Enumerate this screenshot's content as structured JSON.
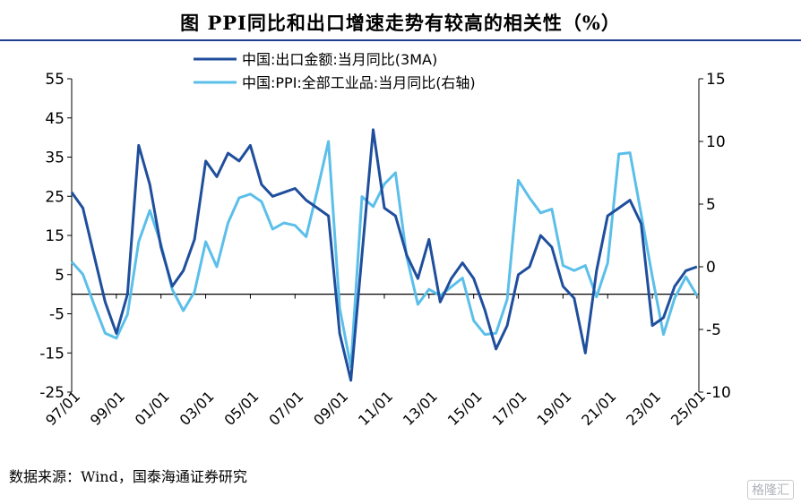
{
  "title": "图  PPI同比和出口增速走势有较高的相关性（%）",
  "source": "数据来源：Wind，国泰海通证券研究",
  "watermark": "格隆汇",
  "colors": {
    "export": "#1f4e9c",
    "ppi": "#5bbfea",
    "zero_line": "#000000",
    "title_rule": "#1f3f8f"
  },
  "chart_data": {
    "type": "line",
    "legend_position": "top-center",
    "grid": false,
    "series": [
      {
        "name": "中国:出口金额:当月同比(3MA)",
        "axis": "left",
        "x": [
          "1997-01",
          "1997-07",
          "1998-01",
          "1998-07",
          "1999-01",
          "1999-07",
          "2000-01",
          "2000-07",
          "2001-01",
          "2001-07",
          "2002-01",
          "2002-07",
          "2003-01",
          "2003-07",
          "2004-01",
          "2004-07",
          "2005-01",
          "2005-07",
          "2006-01",
          "2006-07",
          "2007-01",
          "2007-07",
          "2008-01",
          "2008-07",
          "2009-01",
          "2009-07",
          "2010-01",
          "2010-07",
          "2011-01",
          "2011-07",
          "2012-01",
          "2012-07",
          "2013-01",
          "2013-07",
          "2014-01",
          "2014-07",
          "2015-01",
          "2015-07",
          "2016-01",
          "2016-07",
          "2017-01",
          "2017-07",
          "2018-01",
          "2018-07",
          "2019-01",
          "2019-07",
          "2020-01",
          "2020-07",
          "2021-01",
          "2021-07",
          "2022-01",
          "2022-07",
          "2023-01",
          "2023-07",
          "2024-01",
          "2024-07",
          "2025-01"
        ],
        "values": [
          26,
          22,
          10,
          -2,
          -10,
          0,
          38,
          28,
          12,
          2,
          6,
          14,
          34,
          30,
          36,
          34,
          38,
          28,
          25,
          26,
          27,
          24,
          22,
          20,
          -10,
          -22,
          10,
          42,
          22,
          20,
          10,
          4,
          14,
          -2,
          4,
          8,
          4,
          -4,
          -14,
          -8,
          5,
          7,
          15,
          12,
          2,
          -1,
          -15,
          6,
          20,
          22,
          24,
          18,
          -8,
          -6,
          2,
          6,
          7
        ]
      },
      {
        "name": "中国:PPI:全部工业品:当月同比(右轴)",
        "axis": "right",
        "x": [
          "1997-01",
          "1997-07",
          "1998-01",
          "1998-07",
          "1999-01",
          "1999-07",
          "2000-01",
          "2000-07",
          "2001-01",
          "2001-07",
          "2002-01",
          "2002-07",
          "2003-01",
          "2003-07",
          "2004-01",
          "2004-07",
          "2005-01",
          "2005-07",
          "2006-01",
          "2006-07",
          "2007-01",
          "2007-07",
          "2008-01",
          "2008-07",
          "2009-01",
          "2009-07",
          "2010-01",
          "2010-07",
          "2011-01",
          "2011-07",
          "2012-01",
          "2012-07",
          "2013-01",
          "2013-07",
          "2014-01",
          "2014-07",
          "2015-01",
          "2015-07",
          "2016-01",
          "2016-07",
          "2017-01",
          "2017-07",
          "2018-01",
          "2018-07",
          "2019-01",
          "2019-07",
          "2020-01",
          "2020-07",
          "2021-01",
          "2021-07",
          "2022-01",
          "2022-07",
          "2023-01",
          "2023-07",
          "2024-01",
          "2024-07",
          "2025-01"
        ],
        "values": [
          0.4,
          -0.6,
          -3,
          -5.3,
          -5.7,
          -3.8,
          2,
          4.5,
          1.8,
          -1.8,
          -3.5,
          -2,
          2,
          0,
          3.5,
          5.5,
          5.8,
          5.2,
          3,
          3.5,
          3.3,
          2.4,
          6.1,
          10,
          -3.3,
          -8,
          5.6,
          4.8,
          6.6,
          7.5,
          0.8,
          -3,
          -1.8,
          -2.3,
          -1.6,
          -0.9,
          -4.3,
          -5.4,
          -5.3,
          -2.6,
          6.9,
          5.5,
          4.3,
          4.6,
          0.1,
          -0.3,
          0.1,
          -2.4,
          0.3,
          9,
          9.1,
          4.2,
          -0.8,
          -5.4,
          -2.5,
          -0.8,
          -2.3
        ]
      }
    ],
    "y_left": {
      "min": -25,
      "max": 55,
      "ticks": [
        55,
        45,
        35,
        25,
        15,
        5,
        -5,
        -15,
        -25
      ]
    },
    "y_right": {
      "min": -10,
      "max": 15,
      "ticks": [
        15,
        10,
        5,
        0,
        -5,
        -10
      ]
    },
    "x_ticks": [
      "97/01",
      "99/01",
      "01/01",
      "03/01",
      "05/01",
      "07/01",
      "09/01",
      "11/01",
      "13/01",
      "15/01",
      "17/01",
      "19/01",
      "21/01",
      "23/01",
      "25/01"
    ]
  }
}
